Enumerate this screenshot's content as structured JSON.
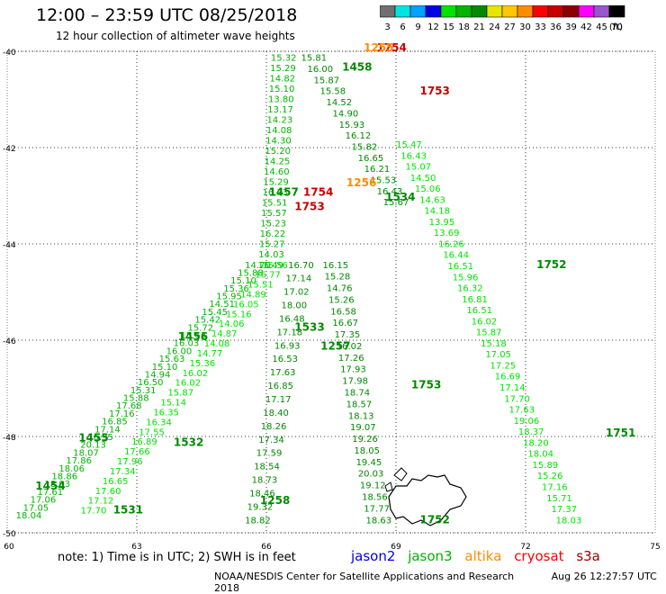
{
  "title": "12:00  – 23:59  UTC 08/25/2018",
  "subtitle": "12 hour collection of altimeter wave heights",
  "colorbar": {
    "unit": "(ft)",
    "ticks": [
      "3",
      "6",
      "9",
      "12",
      "15",
      "18",
      "21",
      "24",
      "27",
      "30",
      "33",
      "36",
      "39",
      "42",
      "45",
      "70"
    ],
    "colors": [
      "#707070",
      "#00e4e4",
      "#00a0ff",
      "#0000e6",
      "#00e400",
      "#00b400",
      "#008a00",
      "#e6e600",
      "#ffc800",
      "#ff8c00",
      "#ff0000",
      "#c80000",
      "#8c0000",
      "#ff00ff",
      "#9955cc",
      "#000000"
    ]
  },
  "axes": {
    "lat_labels": [
      "-40",
      "-42",
      "-44",
      "-46",
      "-48",
      "-50"
    ],
    "lon_labels": [
      "60",
      "63",
      "66",
      "69",
      "72",
      "75"
    ]
  },
  "map": {
    "lon_range": [
      60,
      75
    ],
    "lat_range": [
      -40,
      -50
    ],
    "tracks": [
      {
        "satellite": "jason3",
        "color": "#008a00",
        "start": [
          67.1,
          -40.2
        ],
        "end": [
          69.0,
          -43.2
        ],
        "heights": [
          "15.81",
          "16.00",
          "15.87",
          "15.58",
          "14.52",
          "14.90",
          "15.93",
          "16.12",
          "15.82",
          "16.65",
          "16.21",
          "15.53",
          "16.43",
          "15.67"
        ],
        "labels": [
          {
            "text": "1458",
            "lat": -40.4,
            "lon": 68.1
          },
          {
            "text": "1534",
            "lat": -43.1,
            "lon": 69.1
          }
        ]
      },
      {
        "satellite": "jason3",
        "color": "#00b400",
        "start": [
          66.4,
          -40.2
        ],
        "end": [
          66.1,
          -44.5
        ],
        "heights": [
          "15.32",
          "15.29",
          "14.82",
          "15.10",
          "13.80",
          "13.17",
          "14.23",
          "14.08",
          "14.30",
          "15.20",
          "14.25",
          "14.60",
          "15.29",
          "16.33",
          "15.51",
          "15.57",
          "15.23",
          "16.22",
          "15.27",
          "14.03",
          "15.49"
        ],
        "labels": [
          {
            "text": "1457",
            "lat": -43.0,
            "lon": 66.4
          }
        ]
      },
      {
        "satellite": "jason3",
        "color": "#00e400",
        "start": [
          69.3,
          -42.0
        ],
        "end": [
          73.0,
          -49.8
        ],
        "heights": [
          "15.47",
          "16.43",
          "15.07",
          "14.50",
          "15.06",
          "14.63",
          "14.18",
          "13.95",
          "13.69",
          "16.26",
          "16.44",
          "16.51",
          "15.96",
          "16.32",
          "16.81",
          "16.51",
          "16.02",
          "15.87",
          "15.18",
          "17.05",
          "17.25",
          "16.69",
          "17.14",
          "17.70",
          "17.63",
          "19.06",
          "18.37",
          "18.20",
          "18.04",
          "15.89",
          "15.26",
          "17.16",
          "15.71",
          "17.37",
          "18.03"
        ],
        "labels": [
          {
            "text": "1752",
            "lat": -44.5,
            "lon": 72.6
          },
          {
            "text": "1751",
            "lat": -48.0,
            "lon": 74.2
          }
        ]
      },
      {
        "satellite": "jason3",
        "color": "#00b400",
        "start": [
          65.8,
          -44.5
        ],
        "end": [
          60.5,
          -49.7
        ],
        "heights": [
          "14.70",
          "15.88",
          "15.10",
          "15.36",
          "15.95",
          "14.51",
          "15.45",
          "15.42",
          "15.72",
          "15.63",
          "16.03",
          "16.00",
          "15.63",
          "15.10",
          "14.94",
          "16.50",
          "15.31",
          "15.88",
          "17.68",
          "17.16",
          "16.85",
          "17.14",
          "16.95",
          "20.13",
          "18.07",
          "17.86",
          "18.06",
          "18.86",
          "18.03",
          "17.61",
          "17.06",
          "17.05",
          "18.04"
        ],
        "labels": [
          {
            "text": "1456",
            "lat": -46.0,
            "lon": 64.3
          },
          {
            "text": "1455",
            "lat": -48.1,
            "lon": 62.0
          },
          {
            "text": "1454",
            "lat": -49.1,
            "lon": 61.0
          },
          {
            "text": "1531",
            "lat": -49.6,
            "lon": 62.8
          }
        ]
      },
      {
        "satellite": "jason3",
        "color": "#00e400",
        "start": [
          66.2,
          -44.5
        ],
        "end": [
          62.0,
          -49.6
        ],
        "heights": [
          "15.56",
          "16.77",
          "15.51",
          "14.89",
          "16.05",
          "15.16",
          "14.06",
          "14.87",
          "14.08",
          "14.77",
          "15.36",
          "16.02",
          "16.02",
          "15.87",
          "15.14",
          "16.35",
          "16.34",
          "17.55",
          "16.89",
          "17.66",
          "17.96",
          "17.34",
          "16.65",
          "17.60",
          "17.12",
          "17.70"
        ],
        "labels": [
          {
            "text": "1533",
            "lat": -45.8,
            "lon": 67.0
          },
          {
            "text": "1532",
            "lat": -48.2,
            "lon": 64.2
          }
        ]
      },
      {
        "satellite": "jason3",
        "color": "#008a00",
        "start": [
          66.8,
          -44.5
        ],
        "end": [
          65.8,
          -49.8
        ],
        "heights": [
          "16.70",
          "17.14",
          "17.02",
          "18.00",
          "16.48",
          "17.18",
          "16.93",
          "16.53",
          "17.63",
          "16.85",
          "17.17",
          "18.40",
          "18.26",
          "17.34",
          "17.59",
          "18.54",
          "18.73",
          "18.46",
          "19.32",
          "18.82"
        ],
        "labels": [
          {
            "text": "1258",
            "lat": -49.4,
            "lon": 66.2
          }
        ]
      },
      {
        "satellite": "jason3",
        "color": "#008a00",
        "start": [
          67.6,
          -44.5
        ],
        "end": [
          68.6,
          -49.8
        ],
        "heights": [
          "16.15",
          "15.28",
          "14.76",
          "15.26",
          "16.58",
          "16.67",
          "17.35",
          "16.02",
          "17.26",
          "17.93",
          "17.98",
          "18.74",
          "18.57",
          "18.13",
          "19.07",
          "19.26",
          "18.05",
          "19.45",
          "20.03",
          "19.12",
          "18.56",
          "17.77",
          "18.63"
        ],
        "labels": [
          {
            "text": "1257",
            "lat": -46.2,
            "lon": 67.6
          },
          {
            "text": "1753",
            "lat": -47.0,
            "lon": 69.7
          },
          {
            "text": "1752",
            "lat": -49.8,
            "lon": 69.9
          }
        ]
      }
    ],
    "cryosat_labels": [
      {
        "text": "1754",
        "lat": -40.0,
        "lon": 68.9
      },
      {
        "text": "1753",
        "lat": -40.9,
        "lon": 69.9
      },
      {
        "text": "1754",
        "lat": -43.0,
        "lon": 67.2
      },
      {
        "text": "1753",
        "lat": -43.3,
        "lon": 67.0
      }
    ],
    "altika_labels": [
      {
        "text": "1256",
        "lat": -42.8,
        "lon": 68.2
      },
      {
        "text": "1255",
        "lat": -40.0,
        "lon": 68.6
      }
    ],
    "land_name": "kerguelen-islands"
  },
  "note": "note:  1) Time is in UTC;  2) SWH is in feet",
  "legend": [
    {
      "name": "jason2",
      "color": "#0000e6"
    },
    {
      "name": "jason3",
      "color": "#00b400"
    },
    {
      "name": "altika",
      "color": "#ff8c00"
    },
    {
      "name": "cryosat",
      "color": "#ff0000"
    },
    {
      "name": "s3a",
      "color": "#a00000"
    }
  ],
  "footer": "NOAA/NESDIS Center for Satellite Applications and Research",
  "timestamp": "Aug 26 12:27:57 UTC 2018"
}
